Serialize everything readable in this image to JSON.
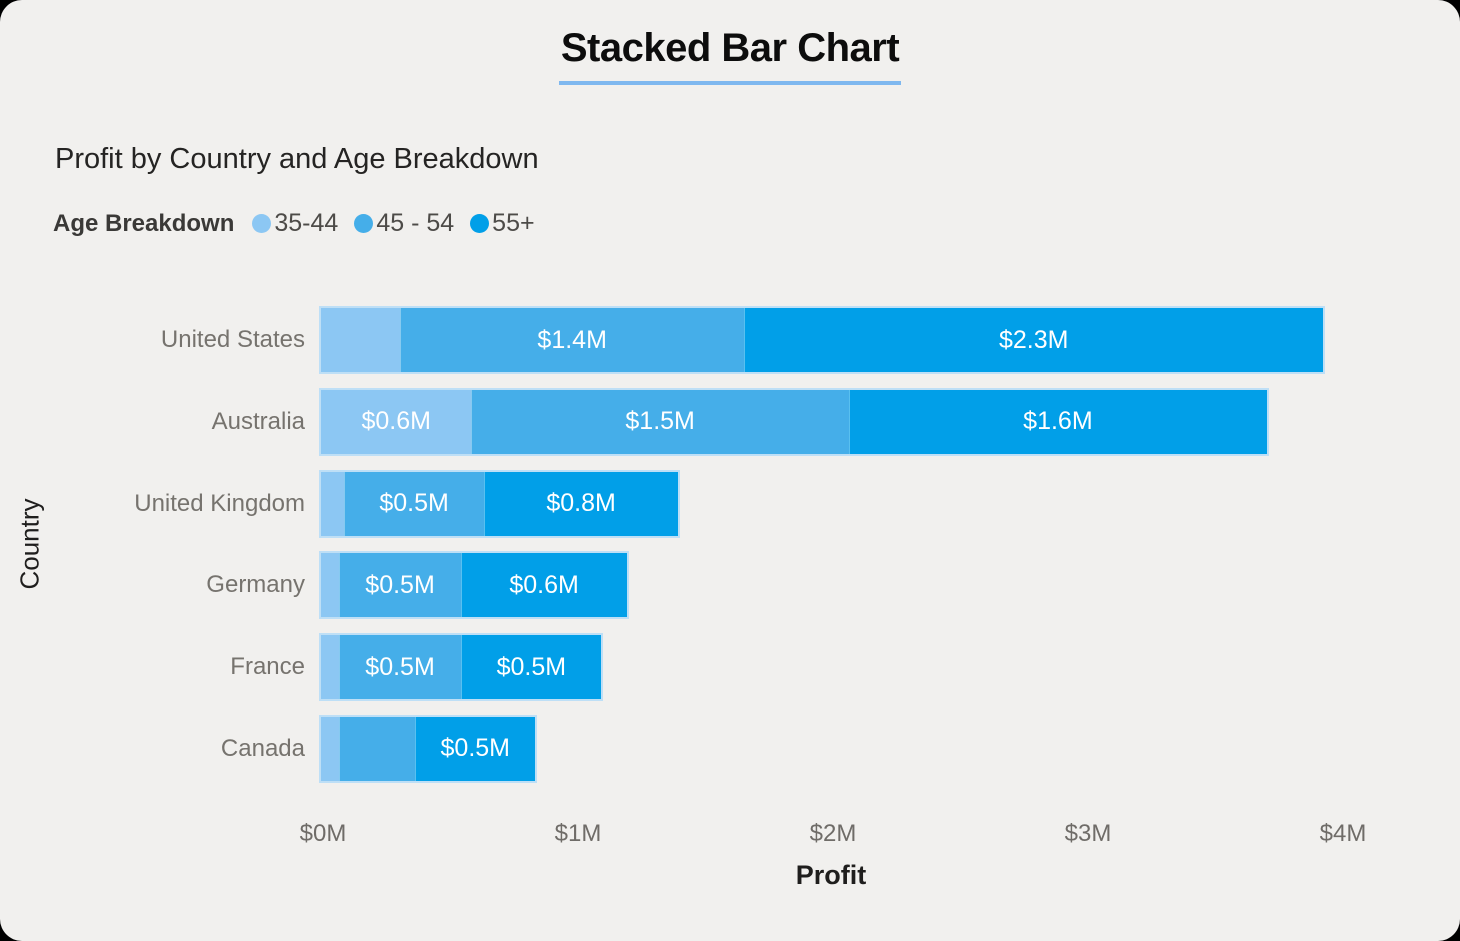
{
  "header": {
    "title": "Stacked Bar Chart"
  },
  "theme": {
    "card_background": "#F1F0EE",
    "behind_background": "#000000",
    "title_underline": "#7FB8EF",
    "bar_halo": "#BEDFF6",
    "value_label_color": "#FFFFFF",
    "category_text_color": "#76736E",
    "tick_text_color": "#6F6C68",
    "axis_title_color": "#1F1E1D"
  },
  "chart": {
    "subtitle": "Profit by Country and Age Breakdown",
    "legend_title": "Age Breakdown"
  },
  "chart_data": {
    "type": "bar",
    "orientation": "horizontal",
    "stacked": true,
    "title": "Profit by Country and Age Breakdown",
    "xlabel": "Profit",
    "ylabel": "Country",
    "xlim": [
      0,
      4
    ],
    "x_unit": "$M",
    "xticks": [
      "$0M",
      "$1M",
      "$2M",
      "$3M",
      "$4M"
    ],
    "grid": false,
    "legend_position": "top",
    "categories": [
      "United States",
      "Australia",
      "United Kingdom",
      "Germany",
      "France",
      "Canada"
    ],
    "series": [
      {
        "name": "35-44",
        "color": "#8CC7F3",
        "values": [
          0.31,
          0.59,
          0.09,
          0.07,
          0.07,
          0.07
        ],
        "labels": [
          "",
          "$0.6M",
          "",
          "",
          "",
          ""
        ]
      },
      {
        "name": "45 - 54",
        "color": "#45AEE9",
        "values": [
          1.35,
          1.48,
          0.55,
          0.48,
          0.48,
          0.3
        ],
        "labels": [
          "$1.4M",
          "$1.5M",
          "$0.5M",
          "$0.5M",
          "$0.5M",
          ""
        ]
      },
      {
        "name": "55+",
        "color": "#019FE8",
        "values": [
          2.27,
          1.64,
          0.76,
          0.65,
          0.55,
          0.47
        ],
        "labels": [
          "$2.3M",
          "$1.6M",
          "$0.8M",
          "$0.6M",
          "$0.5M",
          "$0.5M"
        ]
      }
    ]
  }
}
